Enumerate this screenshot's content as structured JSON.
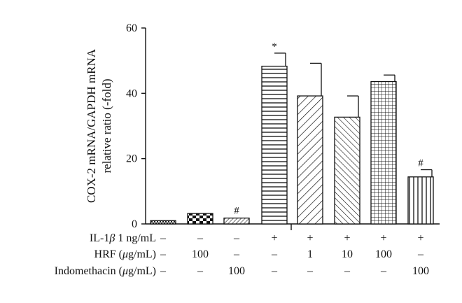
{
  "chart_data": {
    "type": "bar",
    "ylabel_line1": "COX-2 mRNA/GAPDH mRNA",
    "ylabel_line2": "relative ratio (-fold)",
    "ylim": [
      0,
      60
    ],
    "yticks": [
      0,
      20,
      40,
      60
    ],
    "grid": false,
    "legend": "none",
    "bars": [
      {
        "value": 1,
        "error": 0,
        "pattern": "checker-fine",
        "marker": ""
      },
      {
        "value": 3.2,
        "error": 0,
        "pattern": "checker-bold",
        "marker": ""
      },
      {
        "value": 1.8,
        "error": 0,
        "pattern": "diag-right-dense",
        "marker": "#"
      },
      {
        "value": 48.3,
        "error": 4,
        "pattern": "horizontal",
        "marker": "*"
      },
      {
        "value": 39.2,
        "error": 10,
        "pattern": "diag-right",
        "marker": ""
      },
      {
        "value": 32.7,
        "error": 6.5,
        "pattern": "diag-left",
        "marker": ""
      },
      {
        "value": 43.6,
        "error": 2,
        "pattern": "grid",
        "marker": ""
      },
      {
        "value": 14.4,
        "error": 2.2,
        "pattern": "vertical",
        "marker": "#"
      }
    ],
    "conditions": [
      {
        "label_main": "IL-1",
        "label_greek": "β",
        "label_rest": " 1 ng/mL",
        "values": [
          "–",
          "–",
          "–",
          "+",
          "+",
          "+",
          "+",
          "+"
        ]
      },
      {
        "label_main": "HRF (",
        "label_greek": "μ",
        "label_rest": "g/mL)",
        "values": [
          "–",
          "100",
          "–",
          "–",
          "1",
          "10",
          "100",
          "–"
        ]
      },
      {
        "label_main": "Indomethacin (",
        "label_greek": "μ",
        "label_rest": "g/mL)",
        "values": [
          "–",
          "–",
          "100",
          "–",
          "–",
          "–",
          "–",
          "100"
        ]
      }
    ]
  }
}
